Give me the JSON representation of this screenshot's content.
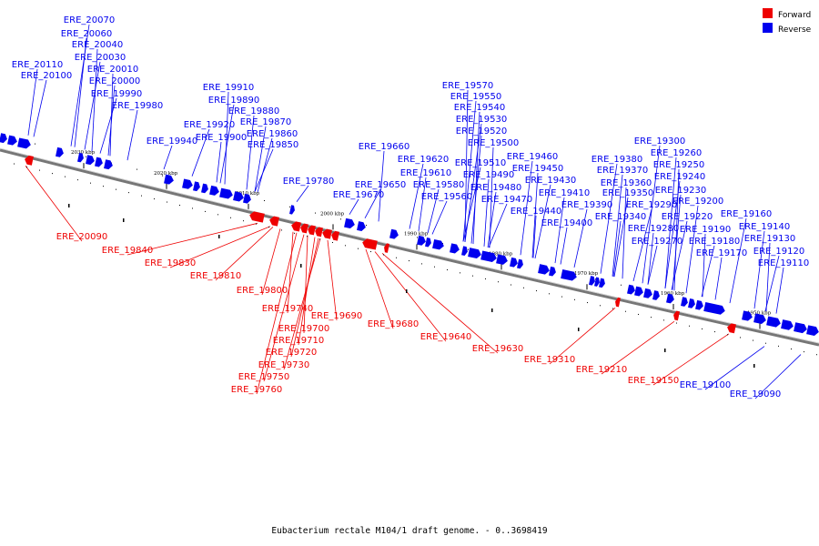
{
  "caption": "Eubacterium rectale M104/1 draft genome. - 0..3698419",
  "legend": [
    {
      "label": "Forward",
      "color": "#ee0000"
    },
    {
      "label": "Reverse",
      "color": "#0000ee"
    }
  ],
  "colors": {
    "backbone": "#777777",
    "forward": "#ee0000",
    "reverse": "#0000ee"
  },
  "ticks": [
    "2030 kbp",
    "2020 kbp",
    "2010 kbp",
    "2000 kbp",
    "1990 kbp",
    "1980 kbp",
    "1970 kbp",
    "1960 kbp",
    "1950 kbp"
  ],
  "reverse_labels": [
    "ERE_20070",
    "ERE_20060",
    "ERE_20040",
    "ERE_20030",
    "ERE_20110",
    "ERE_20010",
    "ERE_20100",
    "ERE_20000",
    "ERE_19990",
    "ERE_19980",
    "ERE_19910",
    "ERE_19890",
    "ERE_19880",
    "ERE_19920",
    "ERE_19870",
    "ERE_19900",
    "ERE_19860",
    "ERE_19940",
    "ERE_19850",
    "ERE_19780",
    "ERE_19660",
    "ERE_19650",
    "ERE_19670",
    "ERE_19570",
    "ERE_19550",
    "ERE_19540",
    "ERE_19530",
    "ERE_19520",
    "ERE_19500",
    "ERE_19620",
    "ERE_19610",
    "ERE_19510",
    "ERE_19580",
    "ERE_19490",
    "ERE_19560",
    "ERE_19480",
    "ERE_19470",
    "ERE_19460",
    "ERE_19450",
    "ERE_19430",
    "ERE_19410",
    "ERE_19440",
    "ERE_19390",
    "ERE_19400",
    "ERE_19380",
    "ERE_19370",
    "ERE_19360",
    "ERE_19350",
    "ERE_19340",
    "ERE_19300",
    "ERE_19260",
    "ERE_19250",
    "ERE_19240",
    "ERE_19230",
    "ERE_19290",
    "ERE_19200",
    "ERE_19280",
    "ERE_19220",
    "ERE_19270",
    "ERE_19190",
    "ERE_19180",
    "ERE_19170",
    "ERE_19160",
    "ERE_19140",
    "ERE_19130",
    "ERE_19120",
    "ERE_19110",
    "ERE_19100",
    "ERE_19090"
  ],
  "forward_labels": [
    "ERE_20090",
    "ERE_19840",
    "ERE_19830",
    "ERE_19810",
    "ERE_19800",
    "ERE_19740",
    "ERE_19690",
    "ERE_19700",
    "ERE_19680",
    "ERE_19710",
    "ERE_19640",
    "ERE_19720",
    "ERE_19630",
    "ERE_19730",
    "ERE_19310",
    "ERE_19750",
    "ERE_19210",
    "ERE_19760",
    "ERE_19150"
  ]
}
